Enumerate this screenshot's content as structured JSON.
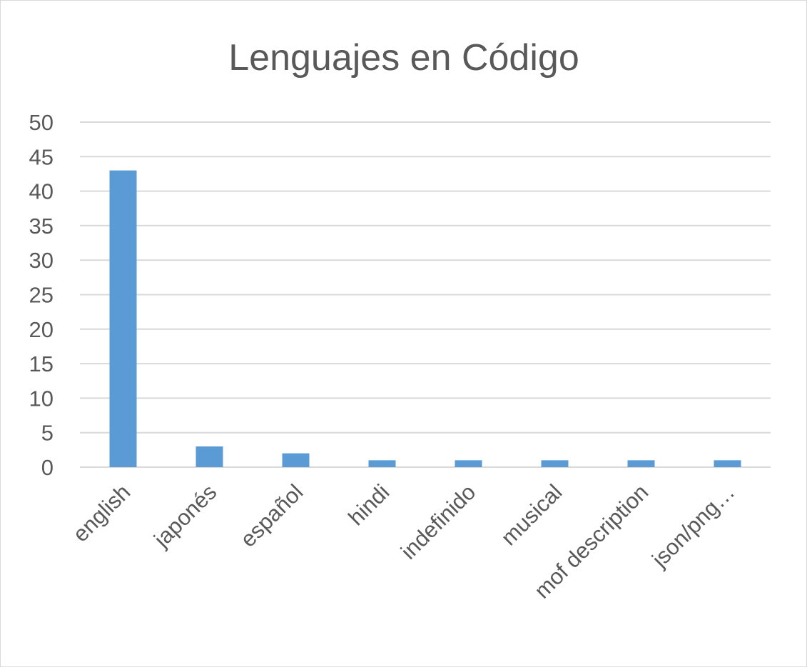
{
  "chart_data": {
    "type": "bar",
    "title": "Lenguajes en Código",
    "xlabel": "",
    "ylabel": "",
    "categories": [
      "english",
      "japonés",
      "español",
      "hindi",
      "indefinido",
      "musical",
      "mof description",
      "json/png…"
    ],
    "values": [
      43,
      3,
      2,
      1,
      1,
      1,
      1,
      1
    ],
    "ylim": [
      0,
      50
    ],
    "yticks": [
      "0",
      "5",
      "10",
      "15",
      "20",
      "25",
      "30",
      "35",
      "40",
      "45",
      "50"
    ],
    "grid": true,
    "legend": "none",
    "bar_color": "#5b9bd5",
    "grid_color": "#d9d9d9",
    "text_color": "#595959"
  }
}
